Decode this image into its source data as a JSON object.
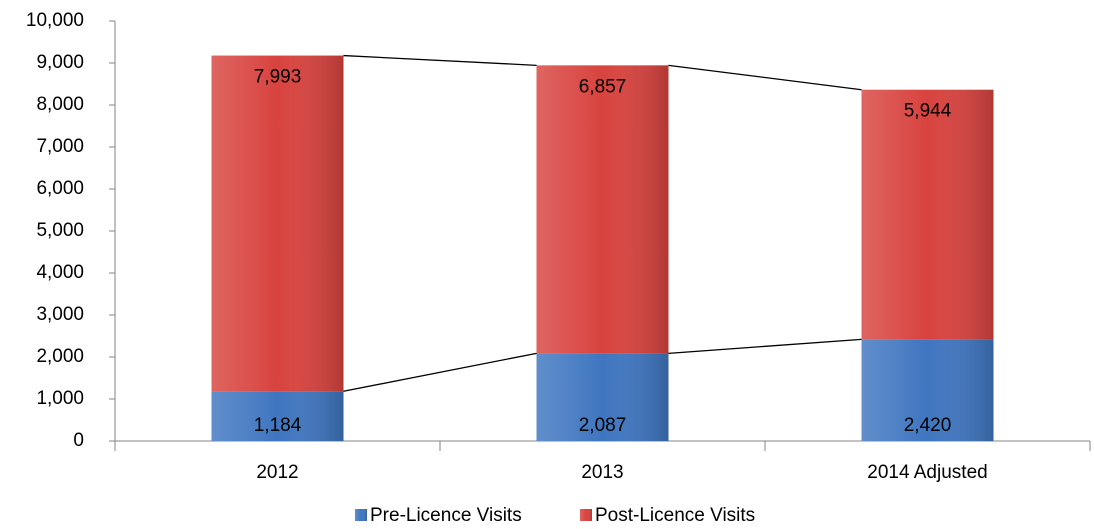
{
  "chart_data": {
    "type": "stacked_bar",
    "categories": [
      "2012",
      "2013",
      "2014 Adjusted"
    ],
    "series": [
      {
        "name": "Pre-Licence Visits",
        "color": "#3f76c0",
        "values": [
          1184,
          2087,
          2420
        ],
        "value_labels": [
          "1,184",
          "2,087",
          "2,420"
        ]
      },
      {
        "name": "Post-Licence Visits",
        "color": "#d8433f",
        "values": [
          7993,
          6857,
          5944
        ],
        "value_labels": [
          "7,993",
          "6,857",
          "5,944"
        ]
      }
    ],
    "ylim": [
      0,
      10000
    ],
    "yticks": [
      0,
      {
        "value": 1000,
        "label": "1,000"
      },
      {
        "value": 2000,
        "label": "2,000"
      },
      {
        "value": 3000,
        "label": "3,000"
      },
      {
        "value": 4000,
        "label": "4,000"
      },
      {
        "value": 5000,
        "label": "5,000"
      },
      {
        "value": 6000,
        "label": "6,000"
      },
      {
        "value": 7000,
        "label": "7,000"
      },
      {
        "value": 8000,
        "label": "8,000"
      },
      {
        "value": 9000,
        "label": "9,000"
      },
      {
        "value": 10000,
        "label": "10,000"
      }
    ],
    "legend": "bottom",
    "series_lines": true
  }
}
